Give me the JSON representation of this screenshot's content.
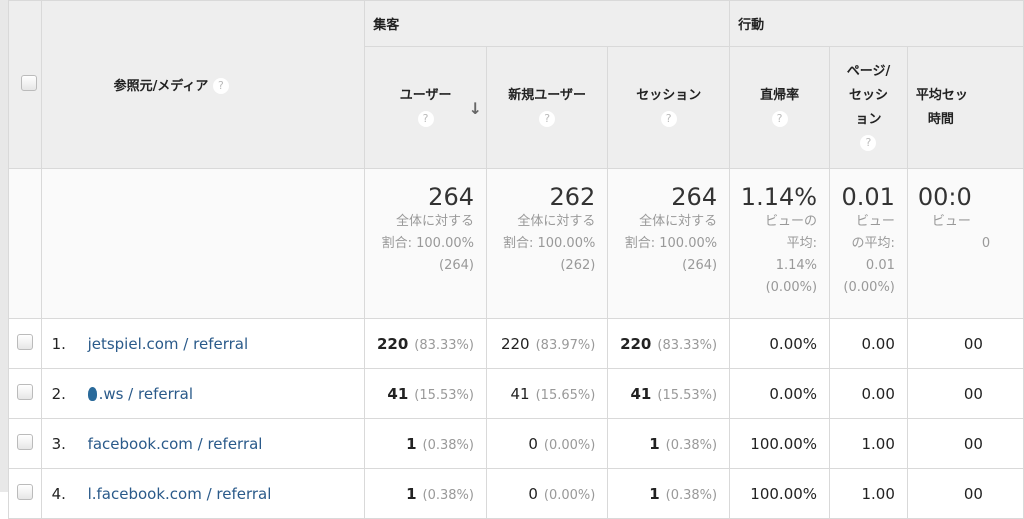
{
  "groups": {
    "acquisition": "集客",
    "behavior": "行動"
  },
  "columns": {
    "source": "参照元/メディア",
    "users": "ユーザー",
    "new_users": "新規ユーザー",
    "sessions": "セッション",
    "bounce": "直帰率",
    "pages1": "ページ/",
    "pages2": "セッシ",
    "pages3": "ョン",
    "avg1": "平均セッ",
    "avg2": "時間",
    "help": "?",
    "sort_arrow": "↓"
  },
  "totals": {
    "users": {
      "value": "264",
      "l1": "全体に対する",
      "l2": "割合: 100.00%",
      "l3": "(264)"
    },
    "new_users": {
      "value": "262",
      "l1": "全体に対する",
      "l2": "割合: 100.00%",
      "l3": "(262)"
    },
    "sessions": {
      "value": "264",
      "l1": "全体に対する",
      "l2": "割合: 100.00%",
      "l3": "(264)"
    },
    "bounce": {
      "value": "1.14%",
      "l1": "ビューの",
      "l2": "平均:",
      "l3": "1.14%",
      "l4": "(0.00%)"
    },
    "pages": {
      "value": "0.01",
      "l1": "ビュー",
      "l2": "の平均:",
      "l3": "0.01",
      "l4": "(0.00%)"
    },
    "avg": {
      "value": "00:0",
      "l1": "ビュー",
      "l2": "0"
    }
  },
  "rows": [
    {
      "idx": "1.",
      "name": "jetspiel.com / referral",
      "users": "220",
      "users_pct": "(83.33%)",
      "new": "220",
      "new_pct": "(83.97%)",
      "sess": "220",
      "sess_pct": "(83.33%)",
      "bounce": "0.00%",
      "pages": "0.00",
      "avg": "00"
    },
    {
      "idx": "2.",
      "name": ".ws / referral",
      "users": "41",
      "users_pct": "(15.53%)",
      "new": "41",
      "new_pct": "(15.65%)",
      "sess": "41",
      "sess_pct": "(15.53%)",
      "bounce": "0.00%",
      "pages": "0.00",
      "avg": "00"
    },
    {
      "idx": "3.",
      "name": "facebook.com / referral",
      "users": "1",
      "users_pct": "(0.38%)",
      "new": "0",
      "new_pct": "(0.00%)",
      "sess": "1",
      "sess_pct": "(0.38%)",
      "bounce": "100.00%",
      "pages": "1.00",
      "avg": "00"
    },
    {
      "idx": "4.",
      "name": "l.facebook.com / referral",
      "users": "1",
      "users_pct": "(0.38%)",
      "new": "0",
      "new_pct": "(0.00%)",
      "sess": "1",
      "sess_pct": "(0.38%)",
      "bounce": "100.00%",
      "pages": "1.00",
      "avg": "00"
    }
  ]
}
